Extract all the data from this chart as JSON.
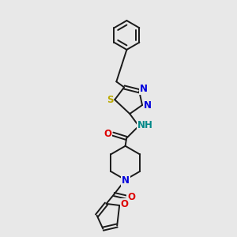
{
  "bg_color": "#e8e8e8",
  "bond_color": "#1a1a1a",
  "bond_width": 1.4,
  "atom_colors": {
    "N": "#0000dd",
    "O": "#dd0000",
    "S": "#bbaa00",
    "H": "#008888",
    "C": "#1a1a1a"
  },
  "font_size": 8.5
}
